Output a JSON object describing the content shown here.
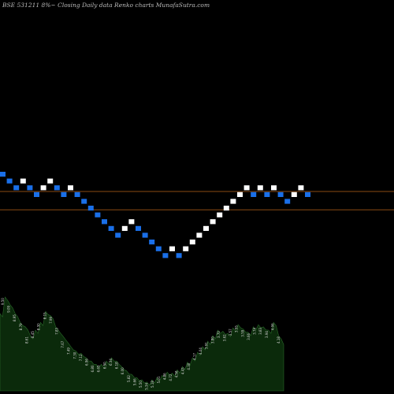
{
  "header": {
    "title": "BSE 531211 8%~  Closing Daily data  Renko  charts MunafaSutra.com"
  },
  "colors": {
    "background": "#000000",
    "up_brick": "#ffffff",
    "down_brick": "#1a6fe8",
    "level_line": "#8a4a12",
    "volume_fill": "#0b2a0b",
    "volume_edge": "#2a6a2a",
    "title_text": "#bbbbbb"
  },
  "chart_data": [
    {
      "type": "renko",
      "title": "BSE 531211 8%~  Closing Daily data  Renko  charts MunafaSutra.com",
      "y_scale": "log",
      "brick_size_percent": 8,
      "direction_legend": {
        "up": "white brick",
        "down": "blue brick"
      },
      "bricks": [
        {
          "dir": "down",
          "level": 0
        },
        {
          "dir": "down",
          "level": -1
        },
        {
          "dir": "down",
          "level": -2
        },
        {
          "dir": "up",
          "level": -1
        },
        {
          "dir": "down",
          "level": -2
        },
        {
          "dir": "down",
          "level": -3
        },
        {
          "dir": "up",
          "level": -2
        },
        {
          "dir": "up",
          "level": -1
        },
        {
          "dir": "down",
          "level": -2
        },
        {
          "dir": "down",
          "level": -3
        },
        {
          "dir": "up",
          "level": -2
        },
        {
          "dir": "down",
          "level": -3
        },
        {
          "dir": "down",
          "level": -4
        },
        {
          "dir": "down",
          "level": -5
        },
        {
          "dir": "down",
          "level": -6
        },
        {
          "dir": "down",
          "level": -7
        },
        {
          "dir": "down",
          "level": -8
        },
        {
          "dir": "down",
          "level": -9
        },
        {
          "dir": "up",
          "level": -8
        },
        {
          "dir": "up",
          "level": -7
        },
        {
          "dir": "down",
          "level": -8
        },
        {
          "dir": "down",
          "level": -9
        },
        {
          "dir": "down",
          "level": -10
        },
        {
          "dir": "down",
          "level": -11
        },
        {
          "dir": "down",
          "level": -12
        },
        {
          "dir": "up",
          "level": -11
        },
        {
          "dir": "down",
          "level": -12
        },
        {
          "dir": "up",
          "level": -11
        },
        {
          "dir": "up",
          "level": -10
        },
        {
          "dir": "up",
          "level": -9
        },
        {
          "dir": "up",
          "level": -8
        },
        {
          "dir": "up",
          "level": -7
        },
        {
          "dir": "up",
          "level": -6
        },
        {
          "dir": "up",
          "level": -5
        },
        {
          "dir": "up",
          "level": -4
        },
        {
          "dir": "up",
          "level": -3
        },
        {
          "dir": "up",
          "level": -2
        },
        {
          "dir": "down",
          "level": -3
        },
        {
          "dir": "up",
          "level": -2
        },
        {
          "dir": "down",
          "level": -3
        },
        {
          "dir": "up",
          "level": -2
        },
        {
          "dir": "down",
          "level": -3
        },
        {
          "dir": "down",
          "level": -4
        },
        {
          "dir": "up",
          "level": -3
        },
        {
          "dir": "up",
          "level": -2
        },
        {
          "dir": "down",
          "level": -3
        }
      ],
      "horizontal_levels": [
        -2.55,
        -5.25
      ],
      "volume_labels": [
        "9.50",
        "9.09",
        "8.95",
        "8.79",
        "8.61",
        "8.45",
        "8.30",
        "8.15",
        "7.99",
        "7.83",
        "7.67",
        "7.49",
        "7.30",
        "7.12",
        "6.96",
        "6.80",
        "6.65",
        "6.50",
        "6.34",
        "6.18",
        "6.00",
        "5.82",
        "5.66",
        "5.50",
        "5.34",
        "5.18",
        "5.01",
        "4.86",
        "4.72",
        "4.58",
        "4.43",
        "4.30",
        "4.17",
        "4.04",
        "3.91",
        "3.80",
        "3.70",
        "3.62",
        "3.57",
        "3.55",
        "3.59",
        "3.66",
        "3.74",
        "3.83",
        "3.94",
        "4.06",
        "4.18"
      ],
      "volume_profile": [
        0.7,
        0.85,
        0.78,
        0.7,
        0.62,
        0.58,
        0.5,
        0.55,
        0.62,
        0.72,
        0.68,
        0.58,
        0.52,
        0.46,
        0.4,
        0.36,
        0.34,
        0.3,
        0.27,
        0.24,
        0.24,
        0.27,
        0.3,
        0.27,
        0.22,
        0.18,
        0.15,
        0.12,
        0.1,
        0.08,
        0.1,
        0.12,
        0.14,
        0.17,
        0.16,
        0.19,
        0.22,
        0.26,
        0.3,
        0.35,
        0.4,
        0.45,
        0.5,
        0.55,
        0.54,
        0.52,
        0.57,
        0.6,
        0.56,
        0.53,
        0.58,
        0.6,
        0.58,
        0.55,
        0.62,
        0.5,
        0.42
      ]
    }
  ]
}
